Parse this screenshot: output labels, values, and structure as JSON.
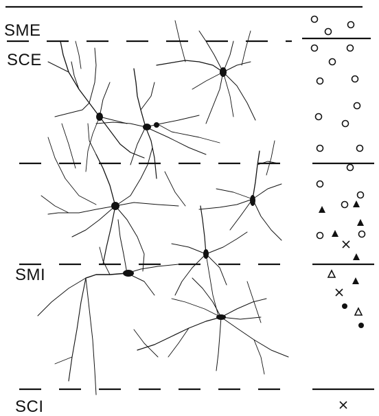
{
  "layers": {
    "sme": "SME",
    "sce": "SCE",
    "smi": "SMI",
    "sci": "SCI"
  },
  "legend_columns": {
    "marker_types": [
      "open-circle",
      "filled-triangle",
      "open-triangle",
      "filled-circle",
      "cross"
    ]
  },
  "colors": {
    "ink": "#111111",
    "background": "#ffffff"
  }
}
